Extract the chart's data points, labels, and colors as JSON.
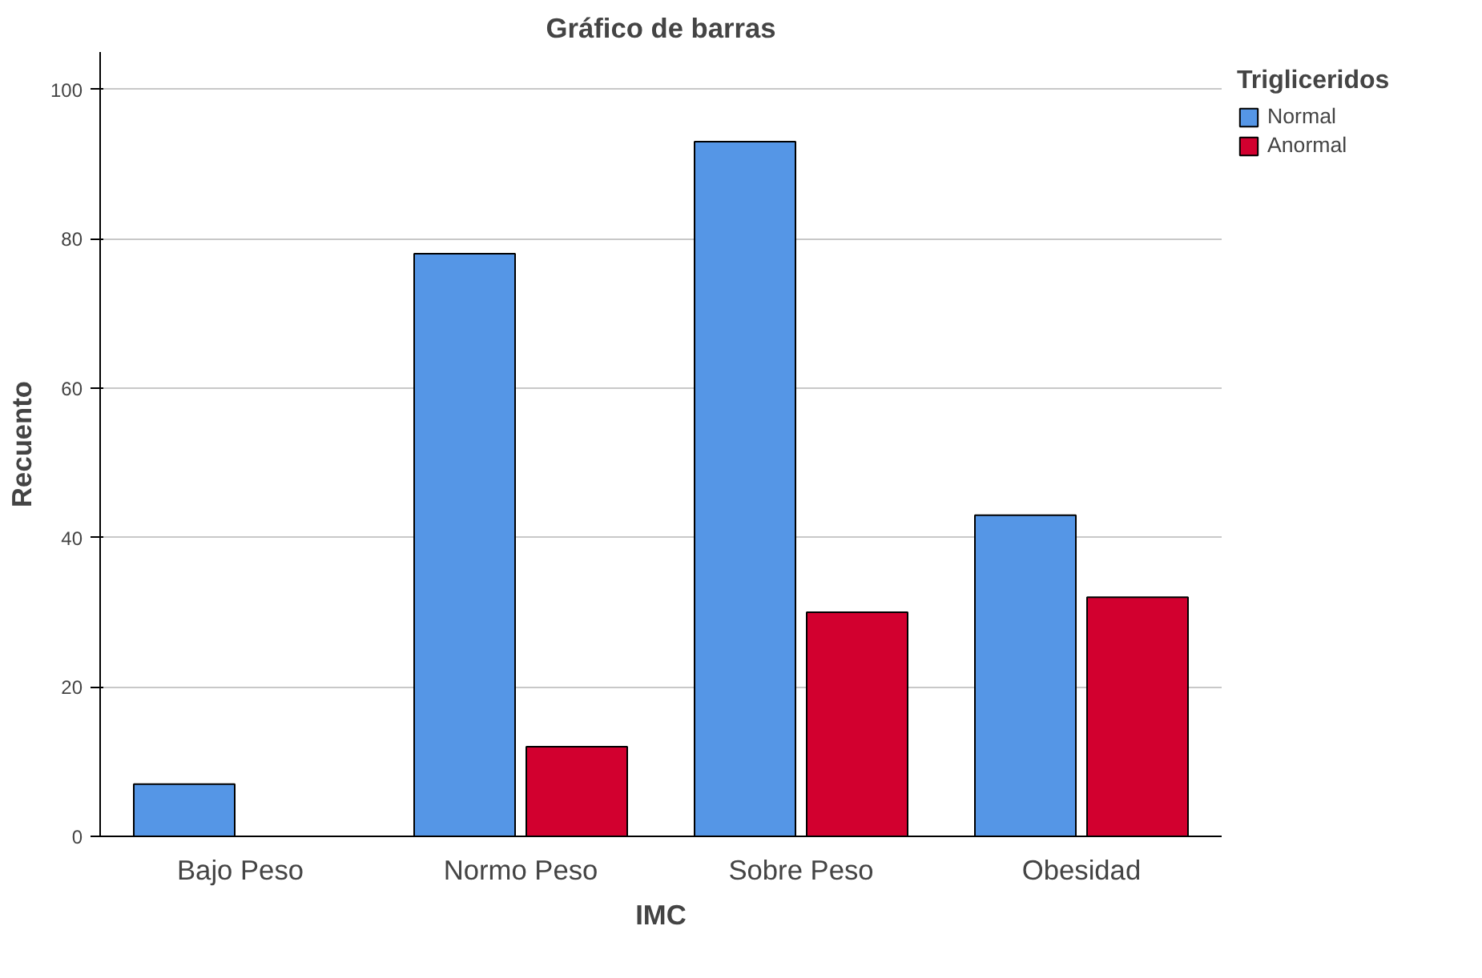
{
  "chart_data": {
    "type": "bar",
    "title": "Gráfico de barras",
    "xlabel": "IMC",
    "ylabel": "Recuento",
    "legend_title": "Trigliceridos",
    "categories": [
      "Bajo Peso",
      "Normo Peso",
      "Sobre Peso",
      "Obesidad"
    ],
    "series": [
      {
        "name": "Normal",
        "color": "#5596e6",
        "values": [
          7,
          78,
          93,
          43
        ]
      },
      {
        "name": "Anormal",
        "color": "#d2002f",
        "values": [
          null,
          12,
          30,
          32
        ]
      }
    ],
    "ylim": [
      0,
      105
    ],
    "yticks": [
      0,
      20,
      40,
      60,
      80,
      100
    ],
    "grid": "y",
    "legend": "top right"
  }
}
